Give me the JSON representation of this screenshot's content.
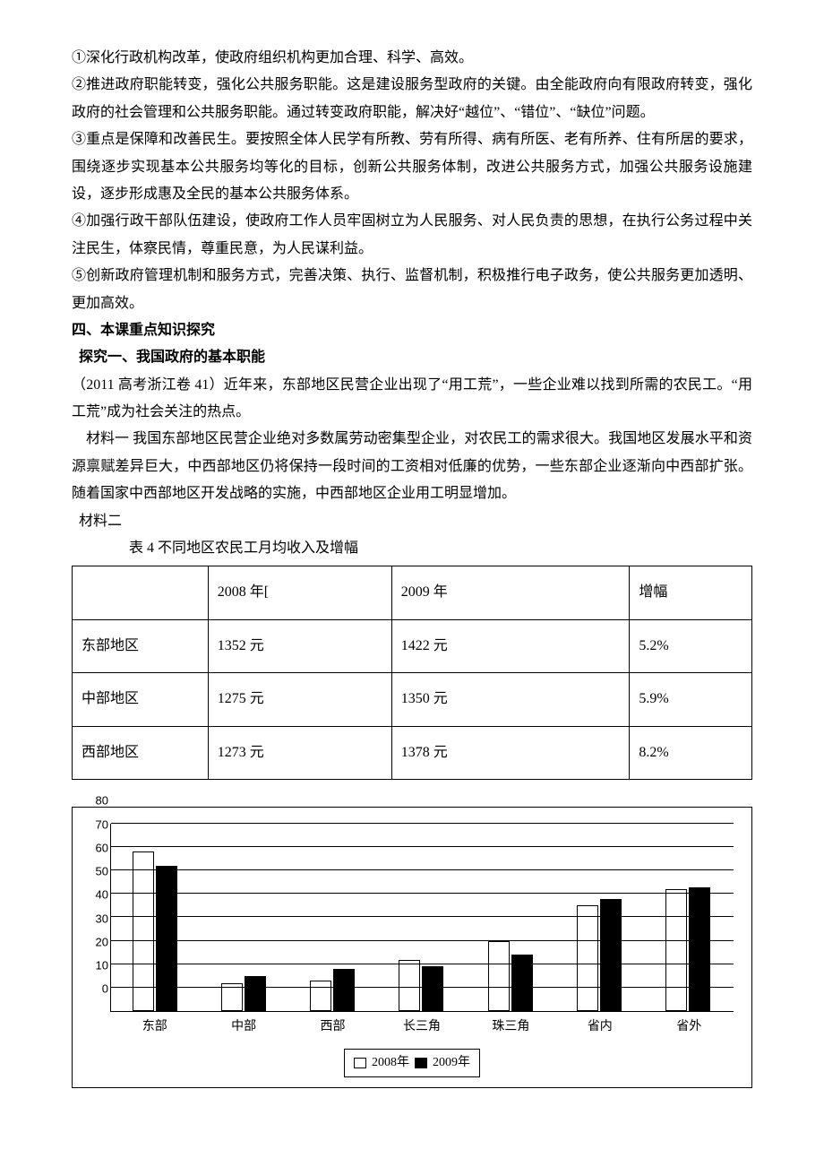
{
  "paragraphs": {
    "p1": "①深化行政机构改革，使政府组织机构更加合理、科学、高效。",
    "p2": "②推进政府职能转变，强化公共服务职能。这是建设服务型政府的关键。由全能政府向有限政府转变，强化政府的社会管理和公共服务职能。通过转变政府职能，解决好“越位”、“错位”、“缺位”问题。",
    "p3": "③重点是保障和改善民生。要按照全体人民学有所教、劳有所得、病有所医、老有所养、住有所居的要求，围绕逐步实现基本公共服务均等化的目标，创新公共服务体制，改进公共服务方式，加强公共服务设施建设，逐步形成惠及全民的基本公共服务体系。",
    "p4": "④加强行政干部队伍建设，使政府工作人员牢固树立为人民服务、对人民负责的思想，在执行公务过程中关注民生，体察民情，尊重民意，为人民谋利益。",
    "p5": "⑤创新政府管理机制和服务方式，完善决策、执行、监督机制，积极推行电子政务，使公共服务更加透明、更加高效。"
  },
  "section_heading": "四、本课重点知识探究",
  "subheading": "探究一、我国政府的基本职能",
  "intro": "（2011 高考浙江卷 41）近年来，东部地区民营企业出现了“用工荒”，一些企业难以找到所需的农民工。“用工荒”成为社会关注的热点。",
  "mat1_label": "材料一",
  "mat1_body": " 我国东部地区民营企业绝对多数属劳动密集型企业，对农民工的需求很大。我国地区发展水平和资源禀赋差异巨大，中西部地区仍将保持一段时间的工资相对低廉的优势，一些东部企业逐渐向中西部扩张。随着国家中西部地区开发战略的实施，中西部地区企业用工明显增加。",
  "mat2_label": "材料二",
  "table": {
    "title": "表 4 不同地区农民工月均收入及增幅",
    "columns": [
      "",
      "2008 年[",
      "2009 年",
      "增幅"
    ],
    "rows": [
      [
        "东部地区",
        "1352 元",
        "1422 元",
        "5.2%"
      ],
      [
        "中部地区",
        "1275 元",
        "1350 元",
        "5.9%"
      ],
      [
        "西部地区",
        "1273 元",
        "1378 元",
        "8.2%"
      ]
    ]
  },
  "chart": {
    "type": "bar",
    "ylim": [
      0,
      80
    ],
    "ytick_step": 10,
    "yticks": [
      0,
      10,
      20,
      30,
      40,
      50,
      60,
      70,
      80
    ],
    "categories": [
      "东部",
      "中部",
      "西部",
      "长三角",
      "珠三角",
      "省内",
      "省外"
    ],
    "series": [
      {
        "name": "2008年",
        "color": "#ffffff",
        "border": "#000000",
        "values": [
          68,
          12,
          13,
          22,
          30,
          45,
          52
        ]
      },
      {
        "name": "2009年",
        "color": "#000000",
        "border": "#000000",
        "values": [
          62,
          15,
          18,
          19,
          24,
          48,
          53
        ]
      }
    ],
    "background": "#ffffff",
    "grid_color": "#000000",
    "legend": [
      "2008年",
      "2009年"
    ]
  }
}
